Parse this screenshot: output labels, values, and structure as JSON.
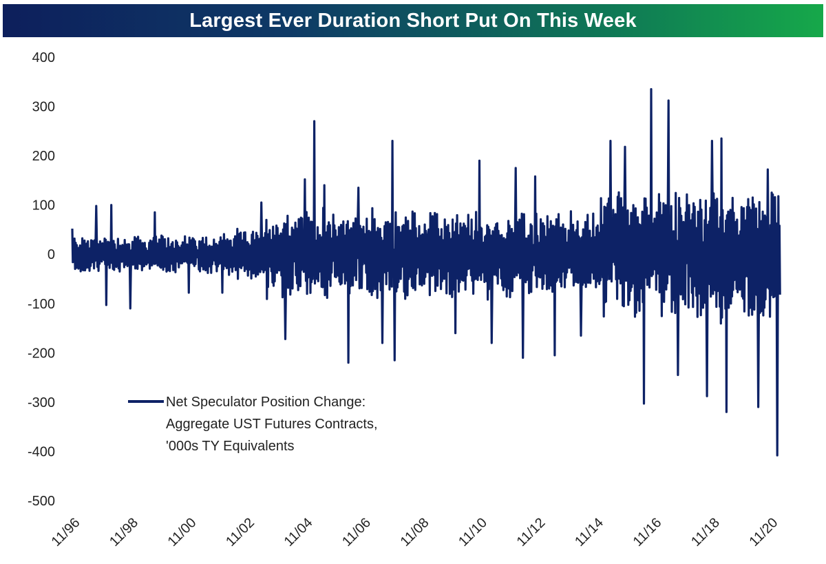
{
  "chart_data": {
    "type": "line",
    "title": "Largest Ever Duration Short Put On This Week",
    "xlabel": "",
    "ylabel": "",
    "ylim": [
      -500,
      400
    ],
    "yticks": [
      400,
      300,
      200,
      100,
      0,
      -100,
      -200,
      -300,
      -400,
      -500
    ],
    "xticks": [
      "11/96",
      "11/98",
      "11/00",
      "11/02",
      "11/04",
      "11/06",
      "11/08",
      "11/10",
      "11/12",
      "11/14",
      "11/16",
      "11/18",
      "11/20"
    ],
    "xlim": [
      "1996-11",
      "2021-03"
    ],
    "grid": false,
    "legend_position": "lower-left",
    "series": [
      {
        "name": "Net Speculator Position Change: Aggregate UST Futures Contracts, '000s TY Equivalents",
        "color": "#0d2266",
        "frequency": "weekly",
        "key_points": [
          {
            "date": "1996-11",
            "value": 52
          },
          {
            "date": "1997-09",
            "value": 98
          },
          {
            "date": "1998-01",
            "value": -103
          },
          {
            "date": "1998-03",
            "value": 100
          },
          {
            "date": "1998-11",
            "value": -110
          },
          {
            "date": "1999-09",
            "value": 85
          },
          {
            "date": "2000-11",
            "value": -78
          },
          {
            "date": "2002-01",
            "value": -78
          },
          {
            "date": "2003-05",
            "value": 105
          },
          {
            "date": "2004-03",
            "value": -172
          },
          {
            "date": "2004-11",
            "value": 152
          },
          {
            "date": "2005-03",
            "value": 270
          },
          {
            "date": "2005-07",
            "value": 140
          },
          {
            "date": "2006-05",
            "value": -220
          },
          {
            "date": "2006-09",
            "value": 135
          },
          {
            "date": "2007-07",
            "value": -180
          },
          {
            "date": "2007-11",
            "value": 230
          },
          {
            "date": "2007-12",
            "value": -215
          },
          {
            "date": "2009-02",
            "value": 50
          },
          {
            "date": "2010-01",
            "value": -160
          },
          {
            "date": "2010-11",
            "value": 190
          },
          {
            "date": "2011-04",
            "value": -180
          },
          {
            "date": "2012-02",
            "value": 175
          },
          {
            "date": "2012-05",
            "value": -210
          },
          {
            "date": "2012-10",
            "value": 158
          },
          {
            "date": "2013-06",
            "value": -205
          },
          {
            "date": "2014-05",
            "value": -165
          },
          {
            "date": "2015-05",
            "value": 230
          },
          {
            "date": "2015-11",
            "value": 218
          },
          {
            "date": "2016-07",
            "value": -303
          },
          {
            "date": "2016-10",
            "value": 335
          },
          {
            "date": "2017-05",
            "value": 312
          },
          {
            "date": "2017-09",
            "value": -245
          },
          {
            "date": "2018-09",
            "value": -288
          },
          {
            "date": "2018-11",
            "value": 230
          },
          {
            "date": "2019-03",
            "value": 235
          },
          {
            "date": "2019-05",
            "value": -320
          },
          {
            "date": "2020-06",
            "value": -310
          },
          {
            "date": "2020-10",
            "value": 172
          },
          {
            "date": "2021-02",
            "value": -408
          }
        ]
      }
    ]
  }
}
